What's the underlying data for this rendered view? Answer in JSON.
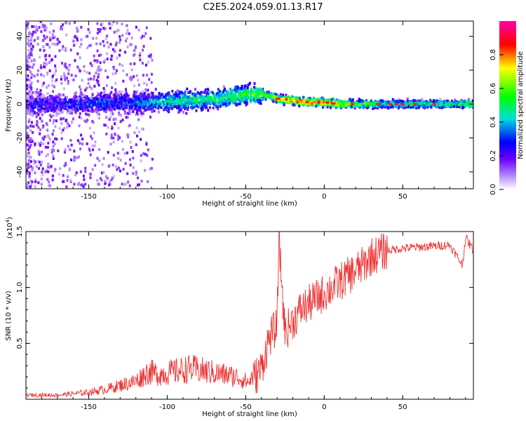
{
  "title": "C2E5.2024.059.01.13.R17",
  "chart_data": [
    {
      "type": "heatmap",
      "xlabel": "Height of straight line (km)",
      "ylabel": "Frequency (Hz)",
      "xlim": [
        -190,
        95
      ],
      "ylim": [
        -50,
        49
      ],
      "xticks": [
        -150,
        -100,
        -50,
        0,
        50
      ],
      "yticks": [
        -40,
        -20,
        0,
        20,
        40
      ],
      "ridge": {
        "x": [
          -190,
          -170,
          -150,
          -130,
          -110,
          -90,
          -70,
          -55,
          -40,
          -30,
          -20,
          -10,
          0,
          10,
          20,
          40,
          60,
          80,
          95
        ],
        "frequency": [
          0,
          0,
          0,
          1,
          1,
          2,
          3,
          5,
          6,
          3,
          2,
          1,
          1,
          0,
          0,
          0,
          0,
          0,
          0
        ],
        "amplitude": [
          0.25,
          0.25,
          0.3,
          0.3,
          0.4,
          0.5,
          0.5,
          0.55,
          0.6,
          0.8,
          0.85,
          0.9,
          0.85,
          0.75,
          0.6,
          0.5,
          0.5,
          0.5,
          0.6
        ]
      },
      "colorbar": {
        "label": "Normalized spectral amplitude",
        "range": [
          0,
          1
        ],
        "ticks": [
          "0.0",
          "0.2",
          "0.4",
          "0.6",
          "0.8"
        ],
        "colors": [
          "#ffffff",
          "#8800ff",
          "#0000ff",
          "#00dddd",
          "#00ff00",
          "#ffff00",
          "#ff0000",
          "#ff00aa"
        ]
      }
    },
    {
      "type": "line",
      "xlabel": "Height of straight line (km)",
      "ylabel": "SNR (10 * v/v)",
      "scale_label": "(x10",
      "scale_exponent": "4",
      "xlim": [
        -190,
        95
      ],
      "ylim": [
        0,
        1.5
      ],
      "xticks": [
        -150,
        -100,
        -50,
        0,
        50
      ],
      "yticks": [
        "0.5",
        "1.0",
        "1.5"
      ],
      "series": [
        {
          "color": "#ee3333",
          "x": [
            -190,
            -170,
            -150,
            -140,
            -130,
            -120,
            -112,
            -105,
            -95,
            -85,
            -75,
            -65,
            -55,
            -48,
            -40,
            -35,
            -30,
            -29,
            -25,
            -20,
            -15,
            -10,
            -5,
            0,
            5,
            10,
            15,
            20,
            25,
            30,
            40,
            50,
            60,
            70,
            80,
            88,
            90,
            95
          ],
          "y": [
            0.03,
            0.03,
            0.05,
            0.07,
            0.1,
            0.13,
            0.2,
            0.18,
            0.2,
            0.22,
            0.2,
            0.18,
            0.16,
            0.12,
            0.28,
            0.55,
            0.65,
            1.45,
            0.6,
            0.7,
            0.8,
            0.85,
            0.9,
            0.95,
            1.0,
            1.05,
            1.1,
            1.15,
            1.2,
            1.28,
            1.33,
            1.35,
            1.36,
            1.37,
            1.38,
            1.2,
            1.45,
            1.33
          ]
        }
      ]
    }
  ]
}
